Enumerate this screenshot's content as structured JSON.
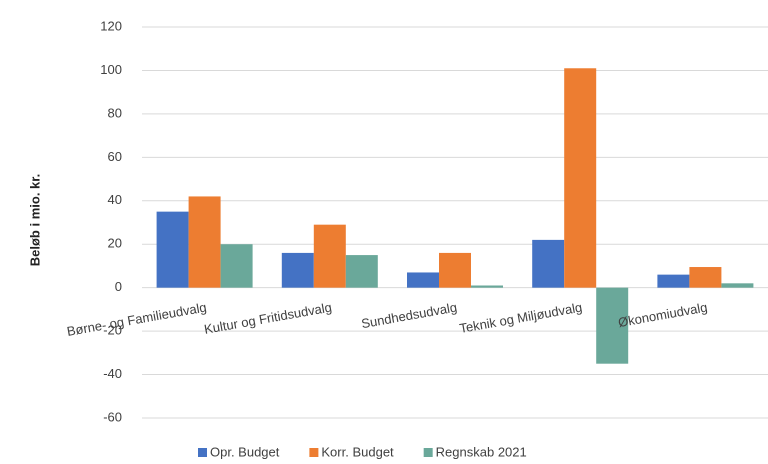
{
  "chart_data": {
    "type": "bar",
    "y_label": "Beløb i mio. kr.",
    "categories": [
      "Børne- og Familieudvalg",
      "Kultur og Fritidsudvalg",
      "Sundhedsudvalg",
      "Teknik og Miljøudvalg",
      "Økonomiudvalg"
    ],
    "series": [
      {
        "name": "Opr. Budget",
        "color": "#4472c4",
        "values": [
          35,
          16,
          7,
          22,
          6
        ]
      },
      {
        "name": "Korr. Budget",
        "color": "#ed7d31",
        "values": [
          42,
          29,
          16,
          101,
          9.5
        ]
      },
      {
        "name": "Regnskab 2021",
        "color": "#6aa89a",
        "values": [
          20,
          15,
          1,
          -35,
          2
        ]
      }
    ],
    "ylim": [
      -60,
      120
    ],
    "yticks": [
      -60,
      -40,
      -20,
      0,
      20,
      40,
      60,
      80,
      100,
      120
    ],
    "grid": true,
    "legend": "bottom"
  }
}
